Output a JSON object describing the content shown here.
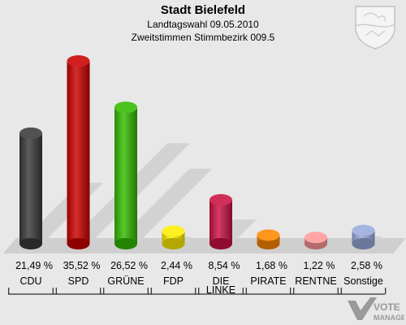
{
  "header": {
    "title": "Stadt Bielefeld",
    "subtitle1": "Landtagswahl 09.05.2010",
    "subtitle2": "Zweitstimmen Stimmbezirk 009.5"
  },
  "logo": {
    "line1": "VOTE",
    "line2": "MANAGER"
  },
  "chart_data": {
    "type": "bar",
    "title": "Stadt Bielefeld",
    "categories": [
      "CDU",
      "SPD",
      "GRÜNE",
      "FDP",
      "DIE LINKE",
      "PIRATE",
      "RENTNE",
      "Sonstige"
    ],
    "values": [
      21.49,
      35.52,
      26.52,
      2.44,
      8.54,
      1.68,
      1.22,
      2.58
    ],
    "value_labels": [
      "21,49 %",
      "35,52 %",
      "26,52 %",
      "2,44 %",
      "8,54 %",
      "1,68 %",
      "1,22 %",
      "2,58 %"
    ],
    "colors": [
      "#3a3a3a",
      "#cc0000",
      "#33bb00",
      "#ffee00",
      "#cc1144",
      "#ff8800",
      "#ff9999",
      "#99aadd"
    ],
    "ylim": [
      0,
      36
    ],
    "grid": false,
    "legend": "none"
  }
}
